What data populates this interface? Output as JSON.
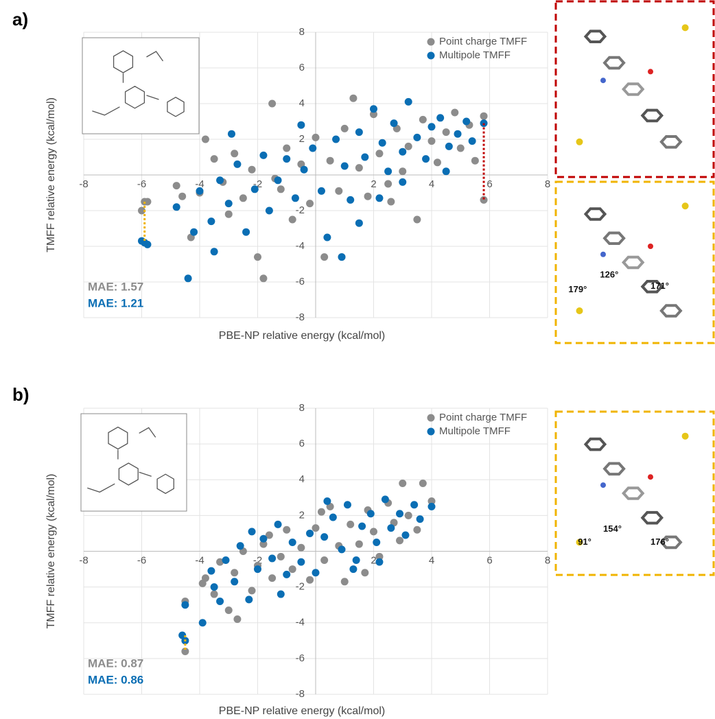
{
  "chart_data": [
    {
      "type": "scatter",
      "panel_label": "a)",
      "xlabel": "PBE-NP relative energy (kcal/mol)",
      "ylabel": "TMFF relative energy (kcal/mol)",
      "xlim": [
        -8,
        8
      ],
      "ylim": [
        -8,
        8
      ],
      "xticks": [
        -8,
        -6,
        -4,
        -2,
        2,
        4,
        6,
        8
      ],
      "yticks": [
        -8,
        -6,
        -4,
        -2,
        2,
        4,
        6,
        8
      ],
      "grid": true,
      "legend": "top-right",
      "series": [
        {
          "name": "Point charge TMFF",
          "color": "#8c8c8c",
          "x": [
            -5.9,
            -5.8,
            -6,
            -4.8,
            -4.6,
            -4.3,
            -4,
            -3.5,
            -3.2,
            -3,
            -2.8,
            -2.5,
            -2.2,
            -2,
            -1.8,
            -1.5,
            -1.2,
            -1,
            -0.8,
            -0.5,
            -0.2,
            0,
            0.3,
            0.5,
            0.8,
            1,
            1.3,
            1.5,
            1.8,
            2,
            2.2,
            2.5,
            2.8,
            3,
            3.2,
            3.5,
            3.7,
            4,
            4.2,
            4.5,
            4.8,
            5,
            5.3,
            5.5,
            5.8,
            5.8,
            -3.8,
            0.9,
            2.6,
            -1.4
          ],
          "y": [
            -1.5,
            -1.5,
            -2,
            -0.6,
            -1.2,
            -3.5,
            -1,
            0.9,
            -0.4,
            -2.2,
            1.2,
            -1.3,
            0.3,
            -4.6,
            -5.8,
            4,
            -0.8,
            1.5,
            -2.5,
            0.6,
            -1.6,
            2.1,
            -4.6,
            0.8,
            -0.9,
            2.6,
            4.3,
            0.4,
            -1.2,
            3.4,
            1.2,
            -0.5,
            2.6,
            0.2,
            1.6,
            -2.5,
            3.1,
            1.9,
            0.7,
            2.4,
            3.5,
            1.5,
            2.8,
            0.8,
            3.3,
            -1.4,
            2,
            -4.6,
            -1.5,
            -0.2
          ]
        },
        {
          "name": "Multipole TMFF",
          "color": "#0a6eb4",
          "x": [
            -6,
            -5.8,
            -5.9,
            -4.8,
            -4.4,
            -4.2,
            -4,
            -3.6,
            -3.3,
            -3,
            -2.7,
            -2.4,
            -2.1,
            -1.8,
            -1.6,
            -1.3,
            -1,
            -0.7,
            -0.4,
            -0.1,
            0.2,
            0.4,
            0.7,
            1,
            1.2,
            1.5,
            1.7,
            2,
            2.3,
            2.5,
            2.7,
            3,
            3.2,
            3.5,
            3.8,
            4,
            4.3,
            4.6,
            4.9,
            5.2,
            5.4,
            5.8,
            -2.9,
            0.9,
            1.5,
            3,
            -0.5,
            2.2,
            -3.5,
            4.5
          ],
          "y": [
            -3.7,
            -3.9,
            -3.8,
            -1.8,
            -5.8,
            -3.2,
            -0.9,
            -2.6,
            -0.3,
            -1.6,
            0.6,
            -3.2,
            -0.8,
            1.1,
            -2,
            -0.3,
            0.9,
            -1.3,
            0.3,
            1.5,
            -0.9,
            -3.5,
            2,
            0.5,
            -1.4,
            2.4,
            1,
            3.7,
            1.8,
            0.2,
            2.9,
            1.3,
            4.1,
            2.1,
            0.9,
            2.7,
            3.2,
            1.6,
            2.3,
            3,
            1.9,
            2.9,
            2.3,
            -4.6,
            -2.7,
            -0.4,
            2.8,
            -1.3,
            -4.3,
            0.2
          ]
        }
      ],
      "connectors": [
        {
          "x": -5.9,
          "y1": -1.5,
          "y2": -3.8,
          "color": "#f0b400"
        },
        {
          "x": 5.8,
          "y1": 2.9,
          "y2": -1.4,
          "color": "#c00000"
        }
      ],
      "annotations": [
        {
          "text": "MAE: 1.57",
          "color": "#8c8c8c"
        },
        {
          "text": "MAE: 1.21",
          "color": "#0a6eb4"
        }
      ]
    },
    {
      "type": "scatter",
      "panel_label": "b)",
      "xlabel": "PBE-NP relative energy (kcal/mol)",
      "ylabel": "TMFF relative energy (kcal/mol)",
      "xlim": [
        -8,
        8
      ],
      "ylim": [
        -8,
        8
      ],
      "xticks": [
        -8,
        -6,
        -4,
        -2,
        2,
        4,
        6,
        8
      ],
      "yticks": [
        -8,
        -6,
        -4,
        -2,
        2,
        4,
        6,
        8
      ],
      "grid": true,
      "legend": "top-right",
      "series": [
        {
          "name": "Point charge TMFF",
          "color": "#8c8c8c",
          "x": [
            -4.5,
            -4.5,
            -3.8,
            -3.5,
            -3.3,
            -3,
            -2.8,
            -2.5,
            -2.2,
            -2,
            -1.8,
            -1.5,
            -1.2,
            -1,
            -0.8,
            -0.5,
            -0.2,
            0,
            0.3,
            0.5,
            0.8,
            1,
            1.2,
            1.5,
            1.8,
            2,
            2.2,
            2.5,
            2.7,
            3,
            3.2,
            3.5,
            3.7,
            4,
            -2.7,
            0.2,
            1.7,
            2.9,
            -1.6,
            -3.9
          ],
          "y": [
            -2.8,
            -5.6,
            -1.5,
            -2.4,
            -0.6,
            -3.3,
            -1.2,
            0,
            -2.2,
            -0.8,
            0.4,
            -1.5,
            -0.3,
            1.2,
            -1,
            0.2,
            -1.6,
            1.3,
            -0.5,
            2.5,
            0.3,
            -1.7,
            1.5,
            0.4,
            2.3,
            1.1,
            -0.3,
            2.7,
            1.6,
            3.8,
            2,
            1.2,
            3.8,
            2.8,
            -3.8,
            2.2,
            -1.2,
            0.6,
            0.9,
            -1.8
          ]
        },
        {
          "name": "Multipole TMFF",
          "color": "#0a6eb4",
          "x": [
            -4.5,
            -4.6,
            -4.5,
            -3.9,
            -3.6,
            -3.3,
            -3.1,
            -2.8,
            -2.6,
            -2.3,
            -2,
            -1.8,
            -1.5,
            -1.3,
            -1,
            -0.8,
            -0.5,
            -0.2,
            0,
            0.3,
            0.6,
            0.9,
            1.1,
            1.4,
            1.6,
            1.9,
            2.1,
            2.4,
            2.6,
            2.9,
            3.1,
            3.4,
            3.6,
            4,
            -3.5,
            0.4,
            -1.2,
            2.2,
            -2.2,
            1.3
          ],
          "y": [
            -3,
            -4.7,
            -5,
            -4,
            -1.1,
            -2.8,
            -0.5,
            -1.7,
            0.3,
            -2.7,
            -1,
            0.7,
            -0.4,
            1.5,
            -1.3,
            0.5,
            -0.6,
            1,
            -1.2,
            0.8,
            1.9,
            0.1,
            2.6,
            -0.5,
            1.4,
            2.1,
            0.5,
            2.9,
            1.3,
            2.1,
            0.9,
            2.6,
            1.8,
            2.5,
            -2,
            2.8,
            -2.4,
            -0.6,
            1.1,
            -1
          ]
        }
      ],
      "connectors": [
        {
          "x": -4.5,
          "y1": -4.7,
          "y2": -5.6,
          "color": "#f0b400"
        }
      ],
      "annotations": [
        {
          "text": "MAE: 0.87",
          "color": "#8c8c8c"
        },
        {
          "text": "MAE: 0.86",
          "color": "#0a6eb4"
        }
      ]
    }
  ],
  "figures": [
    {
      "border": "#c00000",
      "angle_labels": []
    },
    {
      "border": "#f0b400",
      "angle_labels": [
        "126°",
        "179°",
        "171°"
      ]
    },
    {
      "border": "#f0b400",
      "angle_labels": [
        "91°",
        "154°",
        "176°"
      ]
    }
  ]
}
